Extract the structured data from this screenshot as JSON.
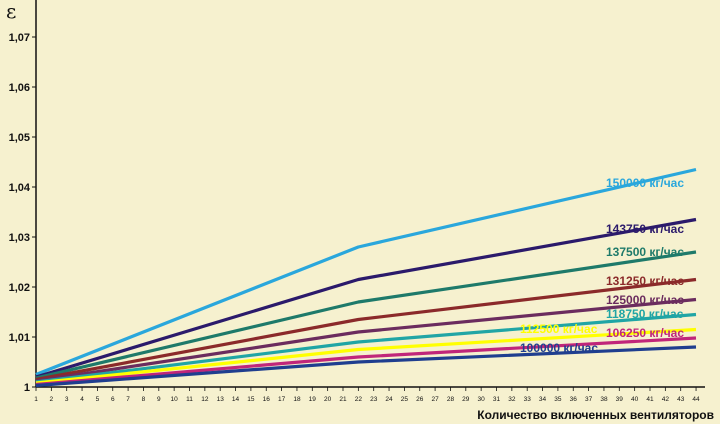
{
  "chart_data": {
    "type": "line",
    "ylabel": "ε",
    "xlabel": "Количество включенных вентиляторов",
    "x": [
      1,
      22,
      44
    ],
    "xticks": [
      "1",
      "2",
      "3",
      "4",
      "5",
      "6",
      "7",
      "8",
      "9",
      "10",
      "11",
      "12",
      "13",
      "14",
      "15",
      "16",
      "17",
      "18",
      "19",
      "20",
      "21",
      "22",
      "23",
      "24",
      "25",
      "26",
      "27",
      "28",
      "29",
      "30",
      "31",
      "32",
      "33",
      "34",
      "35",
      "36",
      "37",
      "38",
      "39",
      "40",
      "41",
      "42",
      "43",
      "44"
    ],
    "yticks": [
      "1",
      "1,01",
      "1,02",
      "1,03",
      "1,04",
      "1,05",
      "1,06",
      "1,07"
    ],
    "ylim": [
      1.0,
      1.077
    ],
    "grid": false,
    "series": [
      {
        "name": "150000 кг/час",
        "color": "#2aa7dc",
        "values": [
          1.0025,
          1.028,
          1.0435
        ]
      },
      {
        "name": "143750 кг/час",
        "color": "#2b1a6b",
        "values": [
          1.002,
          1.0215,
          1.0335
        ]
      },
      {
        "name": "137500 кг/час",
        "color": "#1e7a6a",
        "values": [
          1.0018,
          1.017,
          1.027
        ]
      },
      {
        "name": "131250 кг/час",
        "color": "#8b2a2a",
        "values": [
          1.0015,
          1.0135,
          1.0215
        ]
      },
      {
        "name": "125000 кг/час",
        "color": "#6b2c5e",
        "values": [
          1.0012,
          1.011,
          1.0175
        ]
      },
      {
        "name": "118750 кг/час",
        "color": "#20a5a5",
        "values": [
          1.001,
          1.009,
          1.0145
        ]
      },
      {
        "name": "112500 кг/час",
        "color": "#ffff00",
        "values": [
          1.0008,
          1.0075,
          1.0115
        ]
      },
      {
        "name": "106250 кг/час",
        "color": "#c0267a",
        "values": [
          1.0005,
          1.006,
          1.0098
        ]
      },
      {
        "name": "100000 кг/час",
        "color": "#1f3e8f",
        "values": [
          1.0003,
          1.005,
          1.008
        ]
      }
    ]
  }
}
